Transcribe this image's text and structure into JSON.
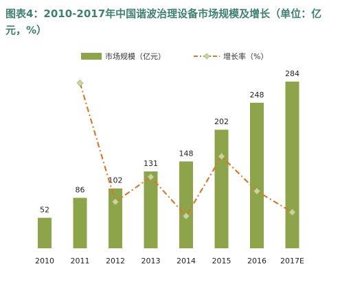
{
  "title_line1": "图表4：2010-2017年中国谐波治理设备市场规模及增长（单位：亿",
  "title_line2": "元，%）",
  "legend": {
    "bar_label": "市场规模（亿元）",
    "line_label": "增长率（%）"
  },
  "colors": {
    "bar": "#8ea44a",
    "line": "#d9772a",
    "marker": "#c8d7a0",
    "title": "#3f7f72"
  },
  "chart_data": {
    "type": "bar",
    "categories": [
      "2010",
      "2011",
      "2012",
      "2013",
      "2014",
      "2015",
      "2016",
      "2017E"
    ],
    "series": [
      {
        "name": "市场规模（亿元）",
        "type": "bar",
        "values": [
          52,
          86,
          102,
          131,
          148,
          202,
          248,
          284
        ]
      },
      {
        "name": "增长率（%）",
        "type": "line",
        "values": [
          null,
          65.4,
          18.6,
          28.4,
          13.0,
          36.5,
          22.8,
          14.5
        ]
      }
    ],
    "ylim": [
      0,
      300
    ],
    "line_ylim": [
      0,
      80
    ],
    "grid": false,
    "legend_position": "top"
  }
}
